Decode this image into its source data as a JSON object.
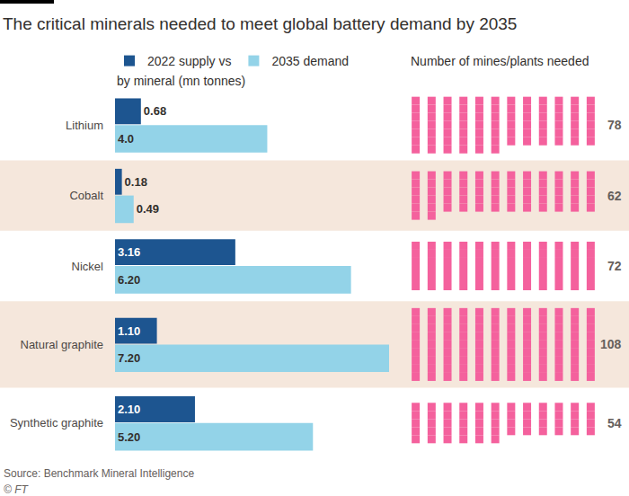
{
  "chart_data": [
    {
      "type": "bar",
      "orientation": "horizontal",
      "title": "The critical minerals needed to meet global battery demand by 2035",
      "categories": [
        "Lithium",
        "Cobalt",
        "Nickel",
        "Natural graphite",
        "Synthetic graphite"
      ],
      "series": [
        {
          "name": "2022 supply vs",
          "color": "#1d5590",
          "values": [
            0.68,
            0.18,
            3.16,
            1.1,
            2.1
          ],
          "value_labels": [
            "0.68",
            "0.18",
            "3.16",
            "1.10",
            "2.10"
          ]
        },
        {
          "name": "2035 demand",
          "color": "#93d3e8",
          "values": [
            4.0,
            0.49,
            6.2,
            7.2,
            5.2
          ],
          "value_labels": [
            "4.0",
            "0.49",
            "6.20",
            "7.20",
            "5.20"
          ]
        }
      ],
      "annotations": [
        "by mineral (mn tonnes)",
        "Source: Benchmark Mineral Intelligence",
        "© FT"
      ],
      "xlim": [
        0,
        7.2
      ],
      "xticks": [],
      "grid": false,
      "data_labels": true,
      "tick_labels": "y",
      "legend": "top left"
    },
    {
      "type": "waffle",
      "title": "Number of mines/plants needed",
      "categories": [
        "Lithium",
        "Cobalt",
        "Nickel",
        "Natural graphite",
        "Synthetic graphite"
      ],
      "values": [
        78,
        62,
        72,
        108,
        54
      ],
      "color": "#f4619d",
      "data_labels": true,
      "tick_labels": false
    }
  ]
}
